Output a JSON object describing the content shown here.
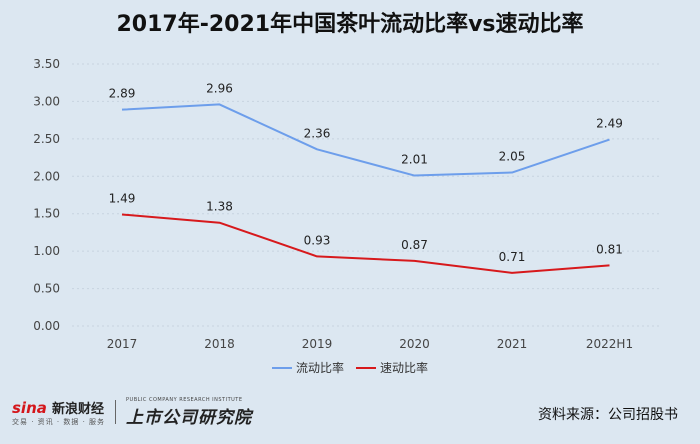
{
  "chart_data": {
    "type": "line",
    "title": "2017年-2021年中国茶叶流动比率vs速动比率",
    "categories": [
      "2017",
      "2018",
      "2019",
      "2020",
      "2021",
      "2022H1"
    ],
    "series": [
      {
        "name": "流动比率",
        "values": [
          2.89,
          2.96,
          2.36,
          2.01,
          2.05,
          2.49
        ],
        "color": "#6d9eeb"
      },
      {
        "name": "速动比率",
        "values": [
          1.49,
          1.38,
          0.93,
          0.87,
          0.71,
          0.81
        ],
        "color": "#d7191c"
      }
    ],
    "y_ticks": [
      "0.00",
      "0.50",
      "1.00",
      "1.50",
      "2.00",
      "2.50",
      "3.00",
      "3.50"
    ],
    "ylim": [
      0,
      3.5
    ],
    "grid": true,
    "legend_position": "bottom"
  },
  "footer": {
    "sina_mark": "sina",
    "sina_name": "新浪财经",
    "sina_sub": "交易 · 资讯 · 数据 · 服务",
    "lsgs_main": "上市公司研究院",
    "lsgs_sub": "PUBLIC COMPANY RESEARCH INSTITUTE",
    "source": "资料来源：公司招股书"
  }
}
